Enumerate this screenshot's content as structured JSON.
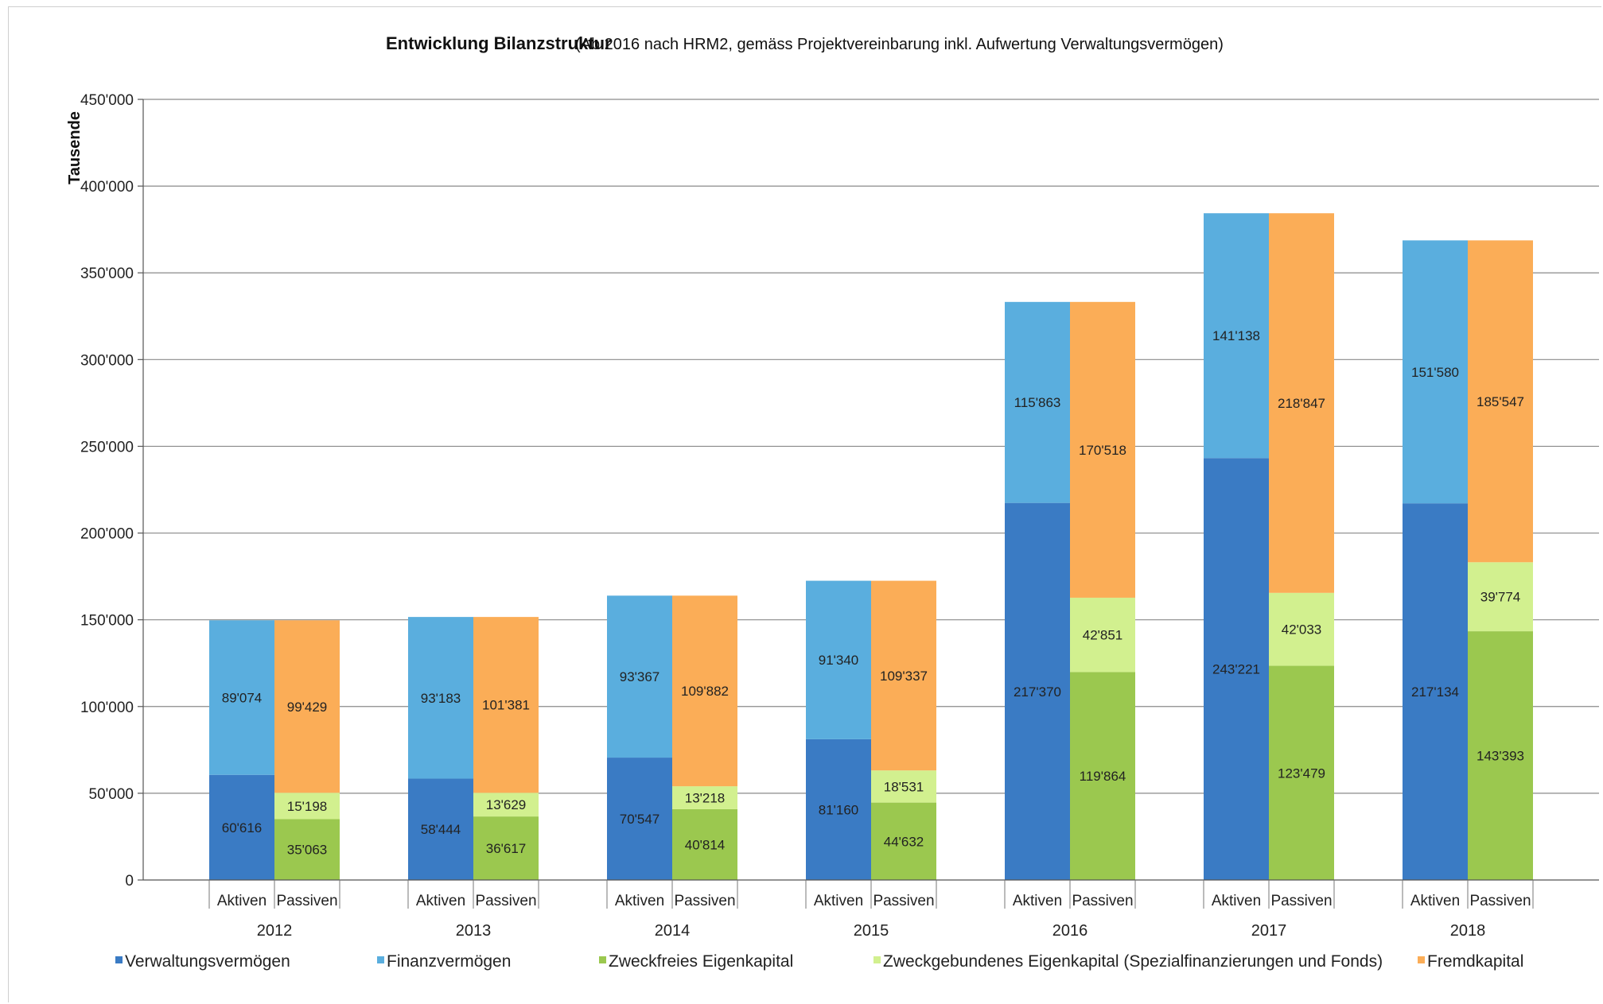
{
  "chart_data": {
    "type": "bar",
    "stacked": true,
    "title": "Entwicklung Bilanzstruktur",
    "subtitle": "(Ab 2016 nach HRM2, gemäss Projektvereinbarung inkl. Aufwertung Verwaltungsvermögen)",
    "ylabel": "Tausende",
    "xlabel": "",
    "ylim": [
      0,
      450000
    ],
    "y_ticks": [
      0,
      50000,
      100000,
      150000,
      200000,
      250000,
      300000,
      350000,
      400000,
      450000
    ],
    "y_tick_labels": [
      "0",
      "50'000",
      "100'000",
      "150'000",
      "200'000",
      "250'000",
      "300'000",
      "350'000",
      "400'000",
      "450'000"
    ],
    "grid": true,
    "legend_position": "bottom",
    "years": [
      "2012",
      "2013",
      "2014",
      "2015",
      "2016",
      "2017",
      "2018"
    ],
    "stack_labels": [
      "Aktiven",
      "Passiven"
    ],
    "series": [
      {
        "name": "Verwaltungsvermögen",
        "stack": "Aktiven",
        "color": "#3a7bc4",
        "values": [
          60616,
          58444,
          70547,
          81160,
          217370,
          243221,
          217134
        ],
        "labels": [
          "60'616",
          "58'444",
          "70'547",
          "81'160",
          "217'370",
          "243'221",
          "217'134"
        ]
      },
      {
        "name": "Finanzvermögen",
        "stack": "Aktiven",
        "color": "#5aaede",
        "values": [
          89074,
          93183,
          93367,
          91340,
          115863,
          141138,
          151580
        ],
        "labels": [
          "89'074",
          "93'183",
          "93'367",
          "91'340",
          "115'863",
          "141'138",
          "151'580"
        ]
      },
      {
        "name": "Zweckfreies Eigenkapital",
        "stack": "Passiven",
        "color": "#9bc84f",
        "values": [
          35063,
          36617,
          40814,
          44632,
          119864,
          123479,
          143393
        ],
        "labels": [
          "35'063",
          "36'617",
          "40'814",
          "44'632",
          "119'864",
          "123'479",
          "143'393"
        ]
      },
      {
        "name": "Zweckgebundenes Eigenkapital (Spezialfinanzierungen und Fonds)",
        "stack": "Passiven",
        "color": "#d2f08f",
        "values": [
          15198,
          13629,
          13218,
          18531,
          42851,
          42033,
          39774
        ],
        "labels": [
          "15'198",
          "13'629",
          "13'218",
          "18'531",
          "42'851",
          "42'033",
          "39'774"
        ]
      },
      {
        "name": "Fremdkapital",
        "stack": "Passiven",
        "color": "#fbad57",
        "values": [
          99429,
          101381,
          109882,
          109337,
          170518,
          218847,
          185547
        ],
        "labels": [
          "99'429",
          "101'381",
          "109'882",
          "109'337",
          "170'518",
          "218'847",
          "185'547"
        ]
      }
    ]
  }
}
